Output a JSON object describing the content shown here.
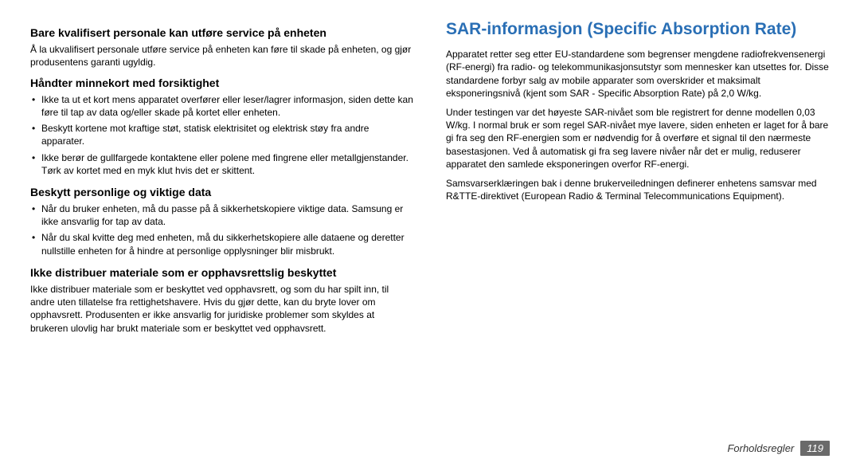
{
  "left": {
    "h1": "Bare kvalifisert personale kan utføre service på enheten",
    "p1": "Å la ukvalifisert personale utføre service på enheten kan føre til skade på enheten, og gjør produsentens garanti ugyldig.",
    "h2": "Håndter minnekort med forsiktighet",
    "b2": [
      "Ikke ta ut et kort mens apparatet overfører eller leser/lagrer informasjon, siden dette kan føre til tap av data og/eller skade på kortet eller enheten.",
      "Beskytt kortene mot kraftige støt, statisk elektrisitet og elektrisk støy fra andre apparater.",
      "Ikke berør de gullfargede kontaktene eller polene med fingrene eller metallgjenstander. Tørk av kortet med en myk klut hvis det er skittent."
    ],
    "h3": "Beskytt personlige og viktige data",
    "b3": [
      "Når du bruker enheten, må du passe på å sikkerhetskopiere viktige data. Samsung er ikke ansvarlig for tap av data.",
      "Når du skal kvitte deg med enheten, må du sikkerhetskopiere alle dataene og deretter nullstille enheten for å hindre at personlige opplysninger blir misbrukt."
    ],
    "h4": "Ikke distribuer materiale som er opphavsrettslig beskyttet",
    "p4": "Ikke distribuer materiale som er beskyttet ved opphavsrett, og som du har spilt inn, til andre uten tillatelse fra rettighetshavere. Hvis du gjør dette, kan du bryte lover om opphavsrett. Produsenten er ikke ansvarlig for juridiske problemer som skyldes at brukeren ulovlig har brukt materiale som er beskyttet ved opphavsrett."
  },
  "right": {
    "title": "SAR-informasjon (Specific Absorption Rate)",
    "p1": "Apparatet retter seg etter EU-standardene som begrenser mengdene radiofrekvensenergi (RF-energi) fra radio- og telekommunikasjonsutstyr som mennesker kan utsettes for. Disse standardene forbyr salg av mobile apparater som overskrider et maksimalt eksponeringsnivå (kjent som SAR - Specific Absorption Rate) på 2,0 W/kg.",
    "p2": "Under testingen var det høyeste SAR-nivået som ble registrert for denne modellen 0,03 W/kg. I normal bruk er som regel SAR-nivået mye lavere, siden enheten er laget for å bare gi fra seg den RF-energien som er nødvendig for å overføre et signal til den nærmeste basestasjonen. Ved å automatisk gi fra seg lavere nivåer når det er mulig, reduserer apparatet den samlede eksponeringen overfor RF-energi.",
    "p3": "Samsvarserklæringen bak i denne brukerveiledningen definerer enhetens samsvar med R&TTE-direktivet (European Radio & Terminal Telecommunications Equipment)."
  },
  "footer": {
    "label": "Forholdsregler",
    "page": "119"
  },
  "style": {
    "accent_color": "#2a6fb5",
    "body_color": "#000000",
    "footer_bg": "#6a6a6a",
    "footer_fg": "#ffffff",
    "page_bg": "#ffffff",
    "h_main_fontsize": 21,
    "h_sub_fontsize": 14,
    "body_fontsize": 12,
    "footer_fontsize": 13
  }
}
